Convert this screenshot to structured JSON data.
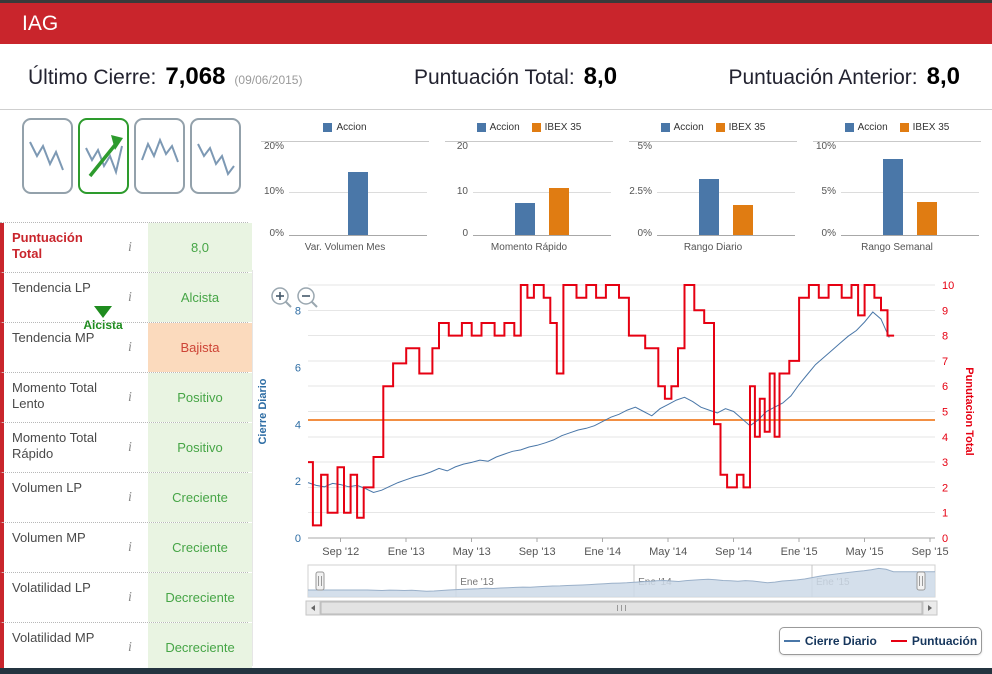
{
  "header": {
    "title": "IAG"
  },
  "summary": {
    "ultimo_cierre": {
      "label": "Último Cierre:",
      "value": "7,068",
      "date": "(09/06/2015)"
    },
    "puntuacion_total": {
      "label": "Puntuación Total:",
      "value": "8,0"
    },
    "puntuacion_anterior": {
      "label": "Puntuación Anterior:",
      "value": "8,0"
    }
  },
  "pattern_selector": {
    "selected_label": "Alcista",
    "items": [
      {
        "name": "pattern-1",
        "selected": false
      },
      {
        "name": "pattern-2",
        "selected": true
      },
      {
        "name": "pattern-3",
        "selected": false
      },
      {
        "name": "pattern-4",
        "selected": false
      }
    ]
  },
  "indicators": {
    "info_icon": "i",
    "rows": [
      {
        "label": "Puntuación Total",
        "value": "8,0",
        "tone": "green",
        "emphasis": true
      },
      {
        "label": "Tendencia LP",
        "value": "Alcista",
        "tone": "green"
      },
      {
        "label": "Tendencia MP",
        "value": "Bajista",
        "tone": "orange"
      },
      {
        "label": "Momento Total Lento",
        "value": "Positivo",
        "tone": "green"
      },
      {
        "label": "Momento Total Rápido",
        "value": "Positivo",
        "tone": "green"
      },
      {
        "label": "Volumen LP",
        "value": "Creciente",
        "tone": "green"
      },
      {
        "label": "Volumen MP",
        "value": "Creciente",
        "tone": "green"
      },
      {
        "label": "Volatilidad LP",
        "value": "Decreciente",
        "tone": "green"
      },
      {
        "label": "Volatilidad MP",
        "value": "Decreciente",
        "tone": "green"
      }
    ]
  },
  "colors": {
    "header_red": "#c9252c",
    "accion_blue": "#4a77a8",
    "ibex_orange": "#e07c12",
    "score_red": "#e60012",
    "threshold_orange": "#f28f43",
    "positive_bg": "#e9f4e2",
    "positive_text": "#46a546",
    "negative_bg": "#fbdabd",
    "negative_text": "#cd4436"
  },
  "legend": {
    "items": [
      {
        "label": "Cierre Diario",
        "color": "#4a77a8"
      },
      {
        "label": "Puntuación",
        "color": "#e60012"
      }
    ]
  },
  "chart_data": [
    {
      "id": "var_volumen_mes",
      "type": "bar",
      "title": "Var. Volumen Mes",
      "yticks": [
        "0%",
        "10%",
        "20%"
      ],
      "ylim": [
        0,
        20
      ],
      "series": [
        {
          "name": "Accion",
          "color": "#4a77a8",
          "value": 14.5
        }
      ]
    },
    {
      "id": "momento_rapido",
      "type": "bar",
      "title": "Momento Rápido",
      "yticks": [
        "0",
        "10",
        "20"
      ],
      "ylim": [
        0,
        20
      ],
      "series": [
        {
          "name": "Accion",
          "color": "#4a77a8",
          "value": 7.3
        },
        {
          "name": "IBEX 35",
          "color": "#e07c12",
          "value": 10.8
        }
      ]
    },
    {
      "id": "rango_diario",
      "type": "bar",
      "title": "Rango Diario",
      "yticks": [
        "0%",
        "2.5%",
        "5%"
      ],
      "ylim": [
        0,
        5
      ],
      "series": [
        {
          "name": "Accion",
          "color": "#4a77a8",
          "value": 3.2
        },
        {
          "name": "IBEX 35",
          "color": "#e07c12",
          "value": 1.7
        }
      ]
    },
    {
      "id": "rango_semanal",
      "type": "bar",
      "title": "Rango Semanal",
      "yticks": [
        "0%",
        "5%",
        "10%"
      ],
      "ylim": [
        0,
        10
      ],
      "series": [
        {
          "name": "Accion",
          "color": "#4a77a8",
          "value": 8.7
        },
        {
          "name": "IBEX 35",
          "color": "#e07c12",
          "value": 3.8
        }
      ]
    },
    {
      "id": "price_vs_score",
      "type": "line",
      "x_domain": [
        0,
        38.3
      ],
      "x_ticks": [
        {
          "t": 2,
          "label": "Sep '12"
        },
        {
          "t": 6,
          "label": "Ene '13"
        },
        {
          "t": 10,
          "label": "May '13"
        },
        {
          "t": 14,
          "label": "Sep '13"
        },
        {
          "t": 18,
          "label": "Ene '14"
        },
        {
          "t": 22,
          "label": "May '14"
        },
        {
          "t": 26,
          "label": "Sep '14"
        },
        {
          "t": 30,
          "label": "Ene '15"
        },
        {
          "t": 34,
          "label": "May '15"
        },
        {
          "t": 38,
          "label": "Sep '15"
        }
      ],
      "left_axis": {
        "title": "Cierre Diario",
        "color": "#2e6da4",
        "ticks": [
          0,
          2,
          4,
          6,
          8
        ],
        "max": 8.9
      },
      "right_axis": {
        "title": "Punutacion Total",
        "color": "#e60012",
        "ticks": [
          0,
          1,
          2,
          3,
          4,
          5,
          6,
          7,
          8,
          9,
          10
        ],
        "max": 10
      },
      "threshold": {
        "axis": "left",
        "value": 4.15,
        "color": "#f28f43"
      },
      "series": [
        {
          "name": "Cierre Diario",
          "color": "#4a77a8",
          "axis": "left",
          "step": false,
          "t_step": 0.5,
          "values": [
            1.95,
            1.85,
            1.8,
            1.92,
            1.88,
            1.8,
            1.85,
            1.74,
            1.6,
            1.68,
            1.82,
            1.95,
            2.05,
            2.15,
            2.22,
            2.32,
            2.45,
            2.36,
            2.5,
            2.6,
            2.66,
            2.74,
            2.7,
            2.85,
            2.95,
            3.05,
            3.1,
            3.2,
            3.26,
            3.35,
            3.45,
            3.6,
            3.7,
            3.8,
            3.86,
            3.95,
            4.1,
            4.25,
            4.35,
            4.5,
            4.6,
            4.45,
            4.3,
            4.55,
            4.7,
            4.85,
            4.95,
            4.8,
            4.6,
            4.5,
            4.4,
            4.55,
            4.45,
            4.2,
            3.95,
            4.15,
            4.45,
            4.6,
            4.75,
            5.0,
            5.4,
            5.75,
            6.1,
            6.35,
            6.6,
            6.85,
            7.1,
            7.3,
            7.6,
            7.95,
            7.7,
            7.05
          ]
        },
        {
          "name": "Puntuación",
          "color": "#e60012",
          "axis": "right",
          "step": true,
          "points": [
            [
              0,
              3
            ],
            [
              0.3,
              0.5
            ],
            [
              0.8,
              2.5
            ],
            [
              1.2,
              1
            ],
            [
              1.8,
              2.8
            ],
            [
              2.2,
              1
            ],
            [
              2.6,
              2.5
            ],
            [
              3,
              0.8
            ],
            [
              3.4,
              2
            ],
            [
              4,
              3.2
            ],
            [
              4.6,
              6
            ],
            [
              5.2,
              6.9
            ],
            [
              6,
              7.5
            ],
            [
              6.8,
              6.5
            ],
            [
              7.6,
              7.5
            ],
            [
              8,
              8.5
            ],
            [
              8.6,
              8
            ],
            [
              9.4,
              8.5
            ],
            [
              10,
              8
            ],
            [
              10.6,
              8.5
            ],
            [
              11.4,
              8
            ],
            [
              12,
              8.5
            ],
            [
              12.6,
              8
            ],
            [
              13,
              10
            ],
            [
              13.4,
              9.5
            ],
            [
              13.8,
              10
            ],
            [
              14.4,
              9.5
            ],
            [
              14.8,
              8.5
            ],
            [
              15.2,
              6.5
            ],
            [
              15.6,
              10
            ],
            [
              16.4,
              9.5
            ],
            [
              17,
              10
            ],
            [
              17.6,
              9.5
            ],
            [
              18.2,
              10
            ],
            [
              19,
              9.5
            ],
            [
              19.6,
              8
            ],
            [
              20.6,
              7.5
            ],
            [
              21.4,
              6
            ],
            [
              21.8,
              5.5
            ],
            [
              22.2,
              6
            ],
            [
              22.6,
              7.5
            ],
            [
              23,
              10
            ],
            [
              23.6,
              9
            ],
            [
              24.2,
              8.5
            ],
            [
              24.8,
              4.5
            ],
            [
              25.2,
              2.5
            ],
            [
              25.6,
              2
            ],
            [
              26.2,
              2.5
            ],
            [
              26.6,
              2
            ],
            [
              27,
              6
            ],
            [
              27.3,
              4
            ],
            [
              27.6,
              5.5
            ],
            [
              27.9,
              4.2
            ],
            [
              28.2,
              6.5
            ],
            [
              28.5,
              4
            ],
            [
              28.8,
              6.5
            ],
            [
              29.4,
              7
            ],
            [
              30,
              9.5
            ],
            [
              30.6,
              10
            ],
            [
              31.2,
              9.5
            ],
            [
              31.8,
              10
            ],
            [
              32.6,
              9.5
            ],
            [
              33.2,
              10
            ],
            [
              33.6,
              8.8
            ],
            [
              34,
              10
            ],
            [
              34.6,
              9.5
            ],
            [
              35,
              9
            ],
            [
              35.4,
              8
            ],
            [
              35.8,
              8
            ]
          ]
        }
      ],
      "navigator": {
        "domain": [
          -4,
          38.3
        ],
        "labels": [
          {
            "t": 6,
            "label": "Ene '13"
          },
          {
            "t": 18,
            "label": "Ene '14"
          },
          {
            "t": 30,
            "label": "Ene '15"
          }
        ]
      },
      "legend": [
        "Cierre Diario",
        "Puntuación"
      ]
    }
  ]
}
